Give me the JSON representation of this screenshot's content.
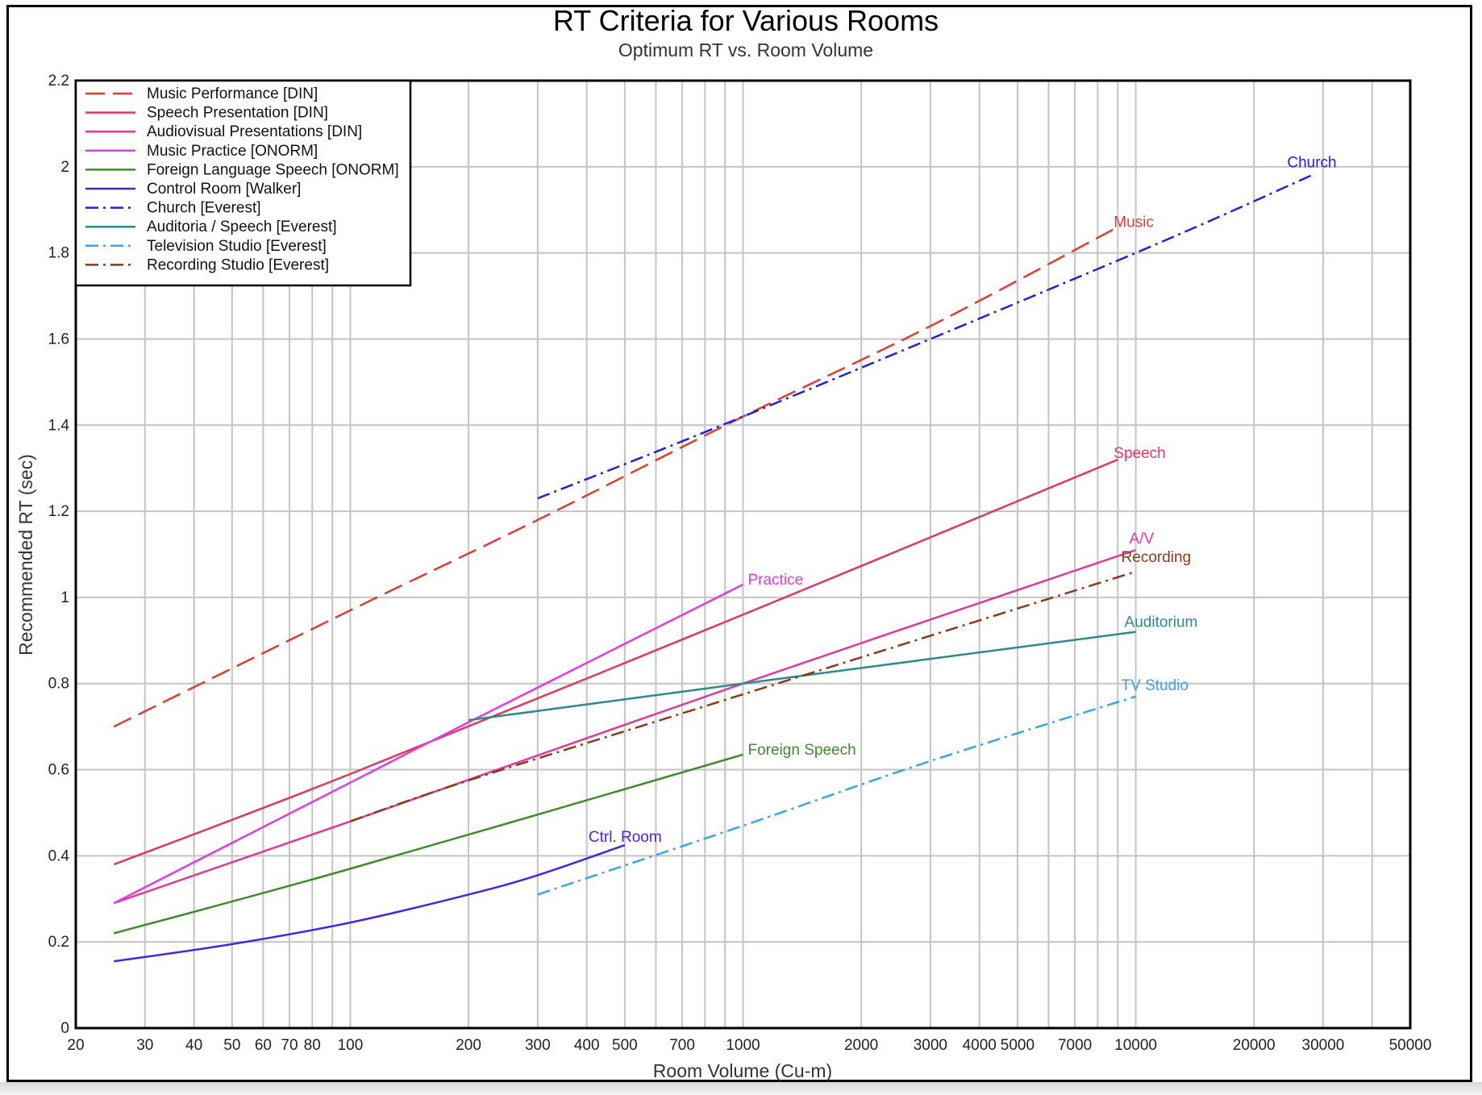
{
  "chart_data": {
    "type": "line",
    "title": "RT Criteria for Various Rooms",
    "subtitle": "Optimum RT vs. Room Volume",
    "xlabel": "Room Volume (Cu-m)",
    "ylabel": "Recommended RT (sec)",
    "x_scale": "log",
    "xlim": [
      20,
      50000
    ],
    "ylim": [
      0,
      2.2
    ],
    "grid": true,
    "legend_position": "top-left",
    "x_ticks": [
      20,
      30,
      40,
      50,
      60,
      70,
      80,
      100,
      200,
      300,
      400,
      500,
      700,
      1000,
      2000,
      3000,
      4000,
      5000,
      7000,
      10000,
      20000,
      30000,
      50000
    ],
    "x_tick_labels": [
      "20",
      "30",
      "40",
      "50",
      "60",
      "70",
      "80",
      "100",
      "200",
      "300",
      "400",
      "500",
      "700",
      "1000",
      "2000",
      "3000",
      "4000",
      "5000",
      "7000",
      "10000",
      "20000",
      "30000",
      "50000"
    ],
    "x_grid": [
      20,
      30,
      40,
      50,
      60,
      70,
      80,
      90,
      100,
      200,
      300,
      400,
      500,
      600,
      700,
      800,
      900,
      1000,
      2000,
      3000,
      4000,
      5000,
      6000,
      7000,
      8000,
      9000,
      10000,
      20000,
      30000,
      40000,
      50000
    ],
    "y_ticks": [
      0,
      0.2,
      0.4,
      0.6,
      0.8,
      1,
      1.2,
      1.4,
      1.6,
      1.8,
      2,
      2.2
    ],
    "y_tick_labels": [
      "0",
      "0.2",
      "0.4",
      "0.6",
      "0.8",
      "1",
      "1.2",
      "1.4",
      "1.6",
      "1.8",
      "2",
      "2.2"
    ],
    "series": [
      {
        "name": "Music Performance [DIN]",
        "color": "#e03c31",
        "dash": "long-dash",
        "label": "Music",
        "points": [
          [
            25,
            0.7
          ],
          [
            100,
            0.97
          ],
          [
            300,
            1.18
          ],
          [
            1000,
            1.42
          ],
          [
            3000,
            1.63
          ],
          [
            9000,
            1.86
          ]
        ]
      },
      {
        "name": "Speech Presentation [DIN]",
        "color": "#e0385e",
        "dash": "solid",
        "label": "Speech",
        "points": [
          [
            25,
            0.38
          ],
          [
            100,
            0.59
          ],
          [
            1000,
            0.96
          ],
          [
            9000,
            1.32
          ]
        ]
      },
      {
        "name": "Audiovisual Presentations [DIN]",
        "color": "#dd3aa0",
        "dash": "solid",
        "label": "A/V",
        "points": [
          [
            25,
            0.29
          ],
          [
            100,
            0.48
          ],
          [
            1000,
            0.8
          ],
          [
            10000,
            1.11
          ]
        ]
      },
      {
        "name": "Music Practice [ONORM]",
        "color": "#e23ce0",
        "dash": "solid",
        "label": "Practice",
        "points": [
          [
            25,
            0.29
          ],
          [
            100,
            0.57
          ],
          [
            200,
            0.71
          ],
          [
            1000,
            1.03
          ]
        ]
      },
      {
        "name": "Foreign Language Speech [ONORM]",
        "color": "#3c8c2c",
        "dash": "solid",
        "label": "Foreign Speech",
        "points": [
          [
            25,
            0.22
          ],
          [
            100,
            0.37
          ],
          [
            1000,
            0.635
          ]
        ]
      },
      {
        "name": "Control Room [Walker]",
        "color": "#4b22e2",
        "dash": "solid",
        "label": "Ctrl. Room",
        "points": [
          [
            25,
            0.155
          ],
          [
            50,
            0.195
          ],
          [
            100,
            0.245
          ],
          [
            200,
            0.31
          ],
          [
            300,
            0.355
          ],
          [
            500,
            0.425
          ]
        ]
      },
      {
        "name": "Church [Everest]",
        "color": "#2020e0",
        "dash": "dash-dot",
        "label": "Church",
        "points": [
          [
            300,
            1.23
          ],
          [
            1000,
            1.42
          ],
          [
            10000,
            1.8
          ],
          [
            28000,
            1.98
          ]
        ]
      },
      {
        "name": "Auditoria / Speech [Everest]",
        "color": "#2e8a8a",
        "dash": "solid",
        "label": "Auditorium",
        "points": [
          [
            200,
            0.715
          ],
          [
            1000,
            0.8
          ],
          [
            10000,
            0.92
          ]
        ]
      },
      {
        "name": "Television Studio [Everest]",
        "color": "#3aa4e8",
        "dash": "dash-dot",
        "label": "TV Studio",
        "points": [
          [
            300,
            0.31
          ],
          [
            1000,
            0.47
          ],
          [
            3000,
            0.62
          ],
          [
            10000,
            0.77
          ]
        ]
      },
      {
        "name": "Recording Studio [Everest]",
        "color": "#8a3a1a",
        "dash": "dash-dot",
        "label": "Recording",
        "points": [
          [
            100,
            0.48
          ],
          [
            200,
            0.575
          ],
          [
            1000,
            0.775
          ],
          [
            10000,
            1.06
          ]
        ]
      }
    ]
  }
}
